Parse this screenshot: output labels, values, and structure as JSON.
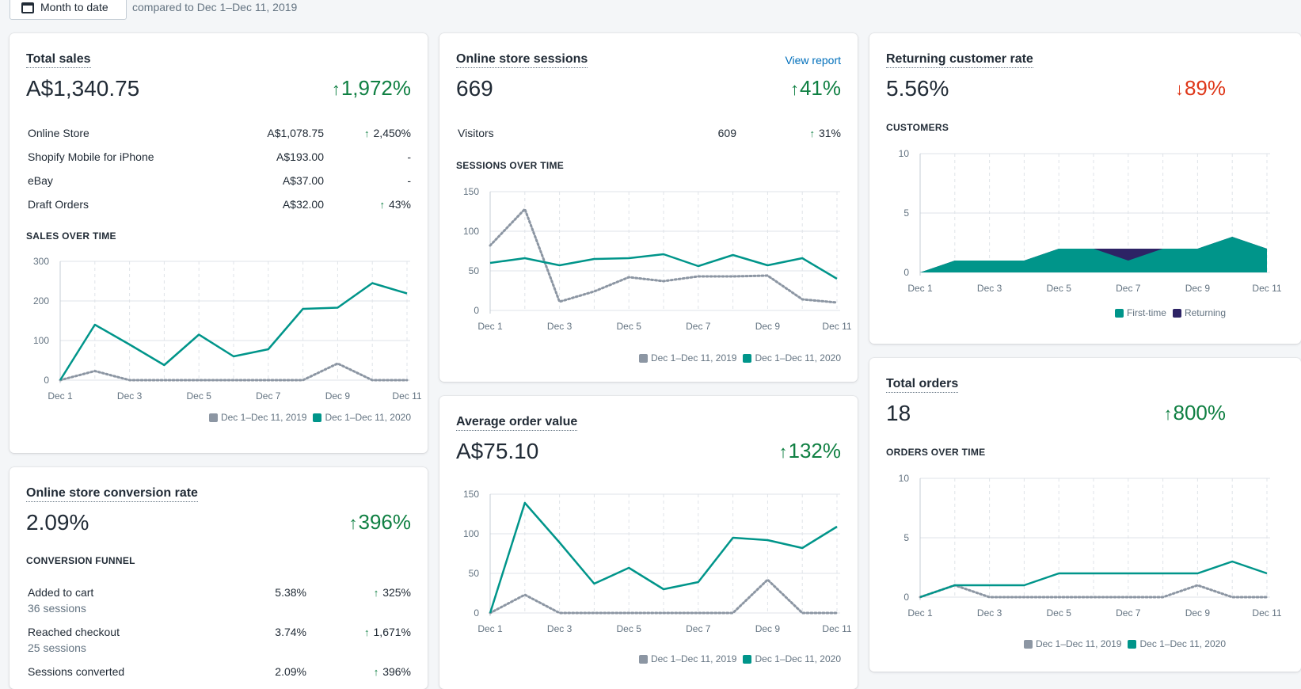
{
  "header": {
    "date_button": "Month to date",
    "compare_text": "compared to Dec 1–Dec 11, 2019"
  },
  "colors": {
    "teal": "#00958a",
    "grey": "#8c96a3",
    "navy": "#2d2365"
  },
  "axis_labels": [
    "Dec 1",
    "Dec 3",
    "Dec 5",
    "Dec 7",
    "Dec 9",
    "Dec 11"
  ],
  "legend": {
    "prev": "Dec 1–Dec 11, 2019",
    "curr": "Dec 1–Dec 11, 2020",
    "first_time": "First-time",
    "returning": "Returning"
  },
  "total_sales": {
    "title": "Total sales",
    "value": "A$1,340.75",
    "change": "1,972%",
    "rows": [
      {
        "label": "Online Store",
        "value": "A$1,078.75",
        "change": "2,450%",
        "up": true
      },
      {
        "label": "Shopify Mobile for iPhone",
        "value": "A$193.00",
        "change": "-",
        "up": false
      },
      {
        "label": "eBay",
        "value": "A$37.00",
        "change": "-",
        "up": false
      },
      {
        "label": "Draft Orders",
        "value": "A$32.00",
        "change": "43%",
        "up": true
      }
    ],
    "chart_title": "SALES OVER TIME"
  },
  "sessions": {
    "title": "Online store sessions",
    "link": "View report",
    "value": "669",
    "change": "41%",
    "row": {
      "label": "Visitors",
      "value": "609",
      "change": "31%"
    },
    "chart_title": "SESSIONS OVER TIME"
  },
  "returning": {
    "title": "Returning customer rate",
    "value": "5.56%",
    "change": "89%",
    "chart_title": "CUSTOMERS"
  },
  "aov": {
    "title": "Average order value",
    "value": "A$75.10",
    "change": "132%"
  },
  "orders": {
    "title": "Total orders",
    "value": "18",
    "change": "800%",
    "chart_title": "ORDERS OVER TIME"
  },
  "conversion": {
    "title": "Online store conversion rate",
    "value": "2.09%",
    "change": "396%",
    "chart_title": "CONVERSION FUNNEL",
    "rows": [
      {
        "label": "Added to cart",
        "sub": "36 sessions",
        "value": "5.38%",
        "change": "325%"
      },
      {
        "label": "Reached checkout",
        "sub": "25 sessions",
        "value": "3.74%",
        "change": "1,671%"
      },
      {
        "label": "Sessions converted",
        "sub": "",
        "value": "2.09%",
        "change": "396%"
      }
    ]
  },
  "chart_data": [
    {
      "type": "line",
      "title": "SALES OVER TIME",
      "ylim": [
        0,
        300
      ],
      "yticks": [
        "0",
        "100",
        "200",
        "300"
      ],
      "x": [
        1,
        2,
        3,
        4,
        5,
        6,
        7,
        8,
        9,
        10,
        11
      ],
      "series": [
        {
          "name": "Dec 1–Dec 11, 2019",
          "values": [
            0,
            23,
            0,
            0,
            0,
            0,
            0,
            0,
            42,
            0,
            0
          ]
        },
        {
          "name": "Dec 1–Dec 11, 2020",
          "values": [
            0,
            140,
            90,
            38,
            115,
            60,
            78,
            180,
            183,
            245,
            219
          ]
        }
      ]
    },
    {
      "type": "line",
      "title": "SESSIONS OVER TIME",
      "ylim": [
        0,
        150
      ],
      "yticks": [
        "0",
        "50",
        "100",
        "150"
      ],
      "x": [
        1,
        2,
        3,
        4,
        5,
        6,
        7,
        8,
        9,
        10,
        11
      ],
      "series": [
        {
          "name": "Dec 1–Dec 11, 2019",
          "values": [
            82,
            128,
            11,
            24,
            42,
            37,
            43,
            43,
            44,
            14,
            10
          ]
        },
        {
          "name": "Dec 1–Dec 11, 2020",
          "values": [
            60,
            66,
            57,
            65,
            66,
            71,
            56,
            70,
            57,
            66,
            40
          ]
        }
      ]
    },
    {
      "type": "area",
      "title": "CUSTOMERS",
      "ylim": [
        0,
        10
      ],
      "yticks": [
        "0",
        "5",
        "10"
      ],
      "x": [
        1,
        2,
        3,
        4,
        5,
        6,
        7,
        8,
        9,
        10,
        11
      ],
      "series": [
        {
          "name": "First-time",
          "values": [
            0,
            1,
            1,
            1,
            2,
            2,
            1,
            2,
            2,
            3,
            2
          ]
        },
        {
          "name": "Returning",
          "values": [
            0,
            0,
            0,
            0,
            0,
            0,
            1,
            0,
            0,
            0,
            0
          ]
        }
      ]
    },
    {
      "type": "line",
      "title": "Average order value",
      "ylim": [
        0,
        150
      ],
      "yticks": [
        "0",
        "50",
        "100",
        "150"
      ],
      "x": [
        1,
        2,
        3,
        4,
        5,
        6,
        7,
        8,
        9,
        10,
        11
      ],
      "series": [
        {
          "name": "Dec 1–Dec 11, 2019",
          "values": [
            0,
            23,
            0,
            0,
            0,
            0,
            0,
            0,
            42,
            0,
            0
          ]
        },
        {
          "name": "Dec 1–Dec 11, 2020",
          "values": [
            0,
            139,
            89,
            37,
            57,
            30,
            39,
            95,
            92,
            82,
            109
          ]
        }
      ]
    },
    {
      "type": "line",
      "title": "ORDERS OVER TIME",
      "ylim": [
        0,
        10
      ],
      "yticks": [
        "0",
        "5",
        "10"
      ],
      "x": [
        1,
        2,
        3,
        4,
        5,
        6,
        7,
        8,
        9,
        10,
        11
      ],
      "series": [
        {
          "name": "Dec 1–Dec 11, 2019",
          "values": [
            0,
            1,
            0,
            0,
            0,
            0,
            0,
            0,
            1,
            0,
            0
          ]
        },
        {
          "name": "Dec 1–Dec 11, 2020",
          "values": [
            0,
            1,
            1,
            1,
            2,
            2,
            2,
            2,
            2,
            3,
            2
          ]
        }
      ]
    }
  ]
}
